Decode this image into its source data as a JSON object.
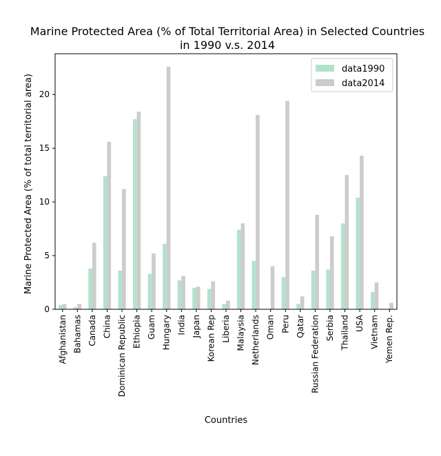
{
  "chart_data": {
    "type": "bar",
    "title_line1": "Marine Protected Area (% of Total Territorial Area) in Selected Countries",
    "title_line2": "in 1990 v.s. 2014",
    "xlabel": "Countries",
    "ylabel": "Marine Protected Area (% of total territorial area)",
    "ylim": [
      0,
      23.8
    ],
    "yticks": [
      0,
      5,
      10,
      15,
      20
    ],
    "legend_position": "top-right",
    "categories": [
      "Afghanistan",
      "Bahamas",
      "Canada",
      "China",
      "Dominican Republic",
      "Ethiopia",
      "Guam",
      "Hungary",
      "India",
      "Japan",
      "Korean Rep",
      "Liberia",
      "Malaysia",
      "Netherlands",
      "Oman",
      "Peru",
      "Qatar",
      "Russian Federation",
      "Serbia",
      "Thailand",
      "USA",
      "Vietnam",
      "Yemen Rep."
    ],
    "series": [
      {
        "name": "data1990",
        "color": "#b2e2cc",
        "values": [
          0.4,
          0.2,
          3.8,
          12.4,
          3.6,
          17.7,
          3.3,
          6.1,
          2.7,
          2.0,
          1.9,
          0.5,
          7.4,
          4.5,
          0.0,
          3.0,
          0.5,
          3.6,
          3.7,
          8.0,
          10.4,
          1.6,
          0.0
        ]
      },
      {
        "name": "data2014",
        "color": "#cccccc",
        "values": [
          0.5,
          0.5,
          6.2,
          15.6,
          11.2,
          18.4,
          5.2,
          22.6,
          3.1,
          2.1,
          2.6,
          0.8,
          8.0,
          18.1,
          4.0,
          19.4,
          1.2,
          8.8,
          6.8,
          12.5,
          14.3,
          2.5,
          0.6
        ]
      }
    ]
  }
}
